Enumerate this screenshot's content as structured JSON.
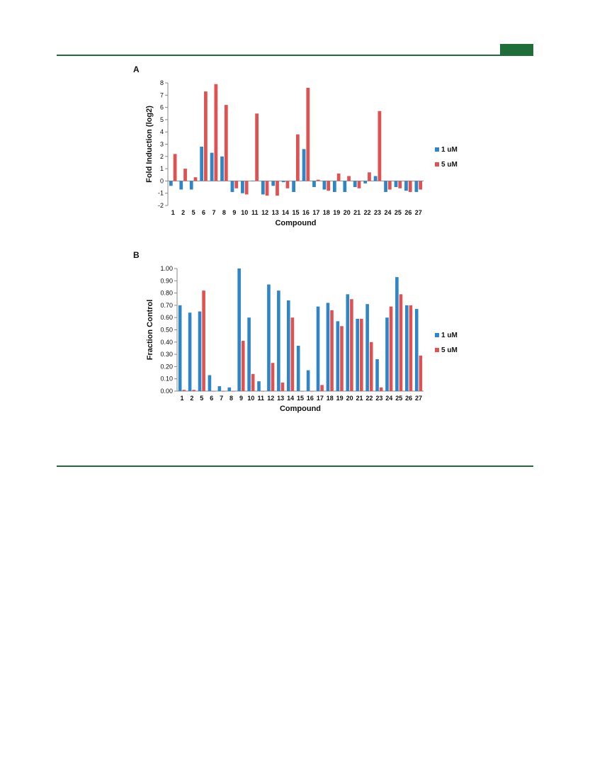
{
  "header": {
    "accent_color": "#1e6e3a"
  },
  "chart_data": [
    {
      "panel": "A",
      "type": "bar",
      "xlabel": "Compound",
      "ylabel": "Fold Induction (log2)",
      "ylim": [
        -2,
        8
      ],
      "yticks": [
        -2,
        -1,
        0,
        1,
        2,
        3,
        4,
        5,
        6,
        7,
        8
      ],
      "categories": [
        "1",
        "2",
        "5",
        "6",
        "7",
        "8",
        "9",
        "10",
        "11",
        "12",
        "13",
        "14",
        "15",
        "16",
        "17",
        "18",
        "19",
        "20",
        "21",
        "22",
        "23",
        "24",
        "25",
        "26",
        "27"
      ],
      "series": [
        {
          "name": "1 uM",
          "color": "#2e86c8",
          "values": [
            -0.4,
            -0.7,
            -0.7,
            2.8,
            2.3,
            2.0,
            -0.9,
            -1.0,
            0.0,
            -1.1,
            -0.4,
            -0.1,
            -0.9,
            2.6,
            -0.5,
            -0.7,
            -0.9,
            -0.9,
            -0.5,
            -0.2,
            0.4,
            -0.9,
            -0.5,
            -0.8,
            -0.9
          ]
        },
        {
          "name": "5 uM",
          "color": "#e05252",
          "values": [
            2.2,
            1.0,
            0.3,
            7.3,
            7.9,
            6.2,
            -0.6,
            -1.1,
            5.5,
            -1.2,
            -1.2,
            -0.6,
            3.8,
            7.6,
            0.1,
            -0.8,
            0.6,
            0.4,
            -0.6,
            0.7,
            5.7,
            -0.7,
            -0.6,
            -0.9,
            -0.7
          ]
        }
      ],
      "legend_position": "right",
      "grid": false
    },
    {
      "panel": "B",
      "type": "bar",
      "xlabel": "Compound",
      "ylabel": "Fraction Control",
      "ylim": [
        0,
        1
      ],
      "yticks": [
        "0.00",
        "0.10",
        "0.20",
        "0.30",
        "0.40",
        "0.50",
        "0.60",
        "0.70",
        "0.80",
        "0.90",
        "1.00"
      ],
      "categories": [
        "1",
        "2",
        "5",
        "6",
        "7",
        "8",
        "9",
        "10",
        "11",
        "12",
        "13",
        "14",
        "15",
        "16",
        "17",
        "18",
        "19",
        "20",
        "21",
        "22",
        "23",
        "24",
        "25",
        "26",
        "27"
      ],
      "series": [
        {
          "name": "1 uM",
          "color": "#2e86c8",
          "values": [
            0.7,
            0.64,
            0.65,
            0.13,
            0.04,
            0.03,
            1.0,
            0.6,
            0.08,
            0.87,
            0.82,
            0.74,
            0.37,
            0.17,
            0.69,
            0.72,
            0.57,
            0.79,
            0.59,
            0.71,
            0.26,
            0.6,
            0.93,
            0.7,
            0.67
          ]
        },
        {
          "name": "5 uM",
          "color": "#e05252",
          "values": [
            0.01,
            0.01,
            0.82,
            0.0,
            0.0,
            0.0,
            0.41,
            0.14,
            0.0,
            0.23,
            0.07,
            0.6,
            0.0,
            0.0,
            0.05,
            0.66,
            0.53,
            0.75,
            0.59,
            0.4,
            0.03,
            0.69,
            0.79,
            0.7,
            0.29
          ]
        }
      ],
      "legend_position": "right",
      "grid": false
    }
  ]
}
